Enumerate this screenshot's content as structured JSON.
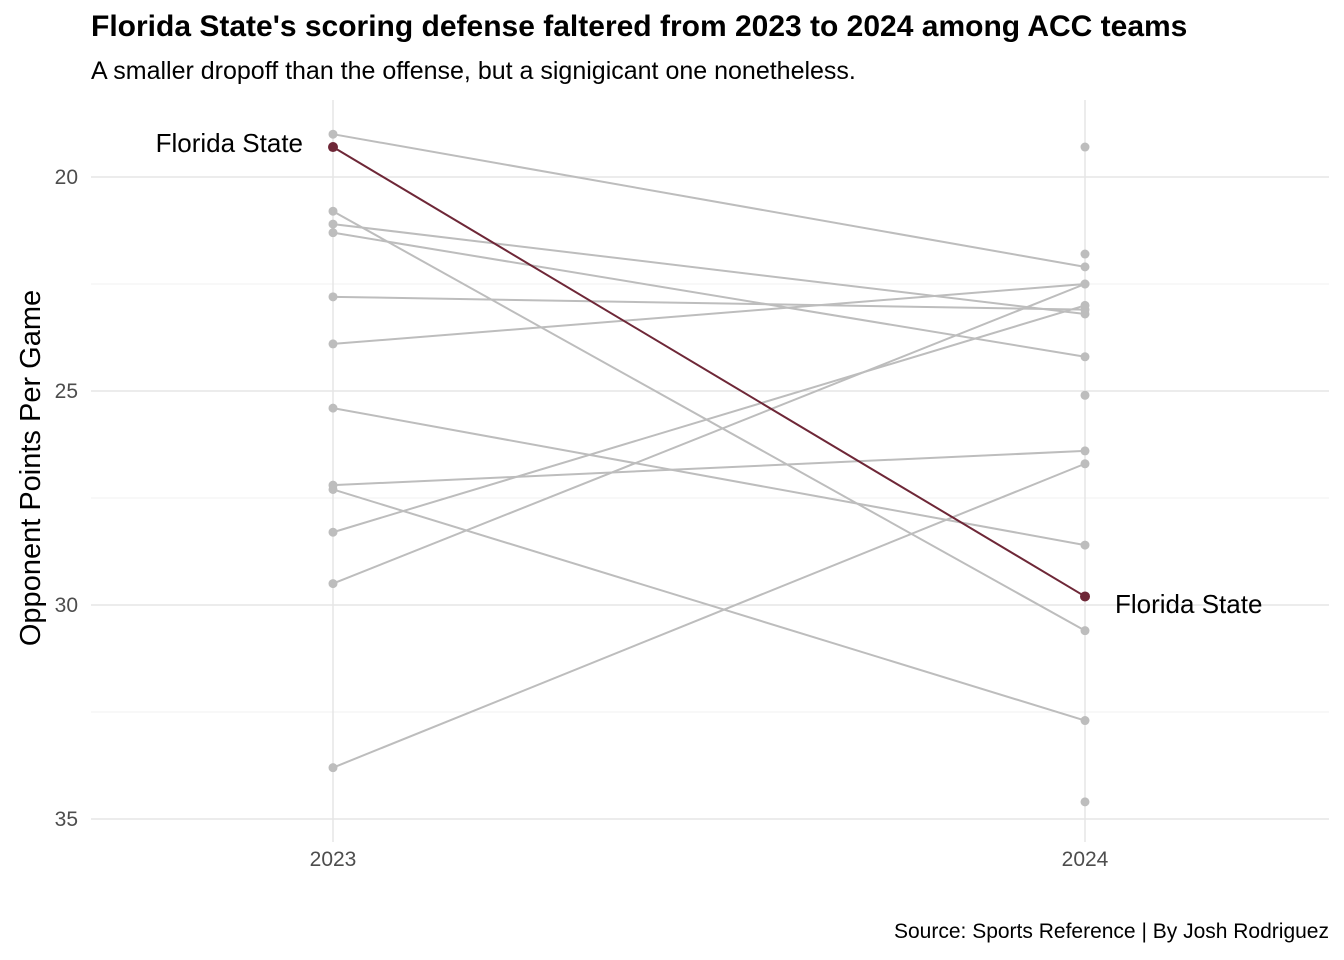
{
  "chart_data": {
    "type": "line",
    "title": "Florida State's scoring defense faltered from 2023 to 2024 among ACC teams",
    "subtitle": "A smaller dropoff than the offense, but a signigicant one nonetheless.",
    "caption": "Source: Sports Reference | By Josh Rodriguez",
    "ylabel": "Opponent Points Per Game",
    "xlabel": "",
    "x": [
      "2023",
      "2024"
    ],
    "y_reversed": true,
    "ylim": [
      18.2,
      35.4
    ],
    "yticks": [
      20,
      25,
      30,
      35
    ],
    "grid": true,
    "legend": "none",
    "colors": {
      "highlight": "#6e2737",
      "other": "#bdbdbd"
    },
    "highlight": {
      "values": [
        19.3,
        29.8
      ],
      "label_2023": "Florida State",
      "label_2024": "Florida State"
    },
    "series": [
      {
        "values": [
          19.0,
          22.1
        ]
      },
      {
        "values": [
          20.8,
          30.6
        ]
      },
      {
        "values": [
          21.1,
          23.2
        ]
      },
      {
        "values": [
          21.3,
          24.2
        ]
      },
      {
        "values": [
          22.8,
          23.1
        ]
      },
      {
        "values": [
          23.9,
          22.5
        ]
      },
      {
        "values": [
          25.4,
          28.6
        ]
      },
      {
        "values": [
          27.2,
          26.4
        ]
      },
      {
        "values": [
          27.3,
          32.7
        ]
      },
      {
        "values": [
          28.3,
          23.0
        ]
      },
      {
        "values": [
          29.5,
          22.5
        ]
      },
      {
        "values": [
          33.8,
          26.7
        ]
      },
      {
        "values": [
          null,
          19.3
        ]
      },
      {
        "values": [
          null,
          21.8
        ]
      },
      {
        "values": [
          null,
          25.1
        ]
      },
      {
        "values": [
          null,
          34.6
        ]
      }
    ]
  }
}
